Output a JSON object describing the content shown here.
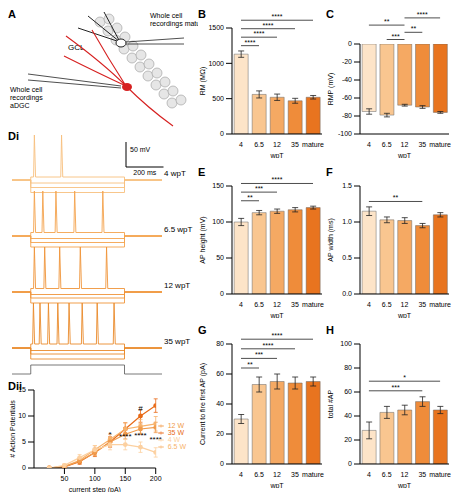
{
  "diagram": {
    "title": "A",
    "layer": "GCL",
    "mature_label": [
      "Whole cell",
      "recordings mature"
    ],
    "adgc_label": [
      "Whole cell",
      "recordings",
      "aDGC"
    ]
  },
  "traces": {
    "title": "Di",
    "scale_bar": {
      "voltage_mV": 50,
      "time_ms": 200,
      "labels": [
        "50 mV",
        "200 ms"
      ]
    },
    "step_ms": [
      100,
      600
    ],
    "sweep_ms": 800,
    "spike_peak_mV": 90,
    "panels": [
      {
        "label": "4 wpT",
        "color": "#f7c07e",
        "sweeps": [
          {
            "deflection_mV": -25,
            "spike_times_ms": []
          },
          {
            "deflection_mV": -15,
            "spike_times_ms": []
          },
          {
            "deflection_mV": -6,
            "spike_times_ms": []
          },
          {
            "deflection_mV": 6,
            "spike_times_ms": [
              15,
              160
            ]
          }
        ]
      },
      {
        "label": "6.5 wpT",
        "color": "#f4a34d",
        "sweeps": [
          {
            "deflection_mV": -22,
            "spike_times_ms": []
          },
          {
            "deflection_mV": -13,
            "spike_times_ms": []
          },
          {
            "deflection_mV": -5,
            "spike_times_ms": []
          },
          {
            "deflection_mV": 7,
            "spike_times_ms": [
              15,
              60,
              130,
              230,
              380
            ]
          }
        ]
      },
      {
        "label": "12 wpT",
        "color": "#ef9439",
        "sweeps": [
          {
            "deflection_mV": -22,
            "spike_times_ms": []
          },
          {
            "deflection_mV": -12,
            "spike_times_ms": []
          },
          {
            "deflection_mV": -5,
            "spike_times_ms": []
          },
          {
            "deflection_mV": 7,
            "spike_times_ms": [
              15,
              70,
              150,
              260,
              400
            ]
          }
        ]
      },
      {
        "label": "35 wpT",
        "color": "#ea8a2a",
        "sweeps": [
          {
            "deflection_mV": -22,
            "spike_times_ms": []
          },
          {
            "deflection_mV": -12,
            "spike_times_ms": []
          },
          {
            "deflection_mV": -5,
            "spike_times_ms": []
          },
          {
            "deflection_mV": 8,
            "spike_times_ms": [
              10,
              45,
              90,
              140,
              200,
              270,
              350,
              440
            ]
          }
        ]
      }
    ]
  },
  "chart_data": [
    {
      "title": "B",
      "type": "bar",
      "categories": [
        "4",
        "6.5",
        "12",
        "35",
        "mature"
      ],
      "values": [
        1130,
        560,
        520,
        470,
        520
      ],
      "errors": [
        45,
        50,
        45,
        35,
        25
      ],
      "colors": [
        "#fde4c8",
        "#f9c690",
        "#f5a963",
        "#ef8c3a",
        "#e8741f"
      ],
      "ylim": [
        0,
        1500
      ],
      "yticks": [
        0,
        500,
        1000,
        1500
      ],
      "y_label": "RM (MΩ)",
      "x_label": "wpT",
      "comparisons": [
        {
          "from": "4",
          "to": "6.5",
          "label": "****"
        },
        {
          "from": "4",
          "to": "12",
          "label": "****"
        },
        {
          "from": "4",
          "to": "35",
          "label": "****"
        },
        {
          "from": "4",
          "to": "mature",
          "label": "****"
        }
      ]
    },
    {
      "title": "C",
      "type": "bar",
      "categories": [
        "4",
        "6.5",
        "12",
        "35",
        "mature"
      ],
      "values": [
        -75,
        -79,
        -68,
        -70,
        -76
      ],
      "errors": [
        3,
        2,
        1,
        1.5,
        1
      ],
      "colors": [
        "#fde4c8",
        "#f9c690",
        "#f5a963",
        "#ef8c3a",
        "#e8741f"
      ],
      "ylim": [
        -100,
        0
      ],
      "yticks": [
        -100,
        -80,
        -60,
        -40,
        -20,
        0
      ],
      "y_label": "RMP (mV)",
      "x_label": "wpT",
      "comparisons": [
        {
          "from": "6.5",
          "to": "12",
          "label": "***"
        },
        {
          "from": "12",
          "to": "35",
          "label": "**"
        },
        {
          "from": "4",
          "to": "12",
          "label": "**"
        },
        {
          "from": "12",
          "to": "mature",
          "label": "****"
        }
      ]
    },
    {
      "title": "E",
      "type": "bar",
      "categories": [
        "4",
        "6.5",
        "12",
        "35",
        "mature"
      ],
      "values": [
        100,
        113,
        115,
        117,
        120
      ],
      "errors": [
        5,
        3,
        3,
        3,
        2
      ],
      "colors": [
        "#fde4c8",
        "#f9c690",
        "#f5a963",
        "#ef8c3a",
        "#e8741f"
      ],
      "ylim": [
        0,
        150
      ],
      "yticks": [
        0,
        50,
        100,
        150
      ],
      "y_label": "AP height (mV)",
      "x_label": "wpT",
      "comparisons": [
        {
          "from": "4",
          "to": "6.5",
          "label": "**"
        },
        {
          "from": "4",
          "to": "12",
          "label": "***"
        },
        {
          "from": "4",
          "to": "mature",
          "label": "****"
        }
      ]
    },
    {
      "title": "F",
      "type": "bar",
      "categories": [
        "4",
        "6.5",
        "12",
        "35",
        "mature"
      ],
      "values": [
        1.15,
        1.03,
        1.02,
        0.95,
        1.1
      ],
      "errors": [
        0.06,
        0.04,
        0.04,
        0.03,
        0.03
      ],
      "colors": [
        "#fde4c8",
        "#f9c690",
        "#f5a963",
        "#ef8c3a",
        "#e8741f"
      ],
      "ylim": [
        0,
        1.5
      ],
      "yticks": [
        {
          "value": 0,
          "label": "0.0"
        },
        0.5,
        {
          "value": 1,
          "label": "1.0"
        },
        1.5
      ],
      "y_label": "AP width (ms)",
      "x_label": "wpT",
      "comparisons": [
        {
          "from": "4",
          "to": "35",
          "label": "**"
        }
      ]
    },
    {
      "title": "G",
      "type": "bar",
      "categories": [
        "4",
        "6.5",
        "12",
        "35",
        "mature"
      ],
      "values": [
        30,
        53,
        55,
        54,
        55
      ],
      "errors": [
        3,
        5,
        5,
        4,
        3
      ],
      "colors": [
        "#fde4c8",
        "#f9c690",
        "#f5a963",
        "#ef8c3a",
        "#e8741f"
      ],
      "ylim": [
        0,
        80
      ],
      "yticks": [
        0,
        20,
        40,
        60,
        80
      ],
      "y_label": "Current to fire first AP (pA)",
      "x_label": "wpT",
      "comparisons": [
        {
          "from": "4",
          "to": "6.5",
          "label": "**"
        },
        {
          "from": "4",
          "to": "12",
          "label": "***"
        },
        {
          "from": "4",
          "to": "35",
          "label": "****"
        },
        {
          "from": "4",
          "to": "mature",
          "label": "****"
        }
      ]
    },
    {
      "title": "H",
      "type": "bar",
      "categories": [
        "4",
        "6.5",
        "12",
        "35",
        "mature"
      ],
      "values": [
        28,
        43,
        45,
        52,
        45
      ],
      "errors": [
        7,
        5,
        4,
        4,
        3
      ],
      "colors": [
        "#fde4c8",
        "#f9c690",
        "#f5a963",
        "#ef8c3a",
        "#e8741f"
      ],
      "ylim": [
        0,
        100
      ],
      "yticks": [
        0,
        20,
        40,
        60,
        80,
        100
      ],
      "y_label": "total #AP",
      "x_label": "wpT",
      "comparisons": [
        {
          "from": "4",
          "to": "35",
          "label": "***"
        },
        {
          "from": "4",
          "to": "mature",
          "label": "*"
        }
      ]
    },
    {
      "title": "Dii",
      "type": "line",
      "x": [
        25,
        50,
        75,
        100,
        125,
        150,
        175,
        200
      ],
      "xlim": [
        0,
        200
      ],
      "xticks": [
        50,
        100,
        150,
        200
      ],
      "ylim": [
        0,
        15
      ],
      "yticks": [
        0,
        5,
        10,
        15
      ],
      "x_label": "current step (pA)",
      "y_label": "# Action Potentials",
      "legend": "right",
      "marker": "circle",
      "series": [
        {
          "name": "35 W",
          "color": "#e86a17",
          "values": [
            0,
            0.2,
            1.2,
            3,
            5,
            7.5,
            10,
            12
          ],
          "errors": [
            0,
            0.2,
            0.5,
            0.8,
            1,
            1.2,
            1.2,
            1.3
          ]
        },
        {
          "name": "6.5 W",
          "color": "#f7b36c",
          "values": [
            0,
            0.3,
            1.5,
            3.5,
            5.5,
            7.5,
            8,
            8.5
          ],
          "errors": [
            0,
            0.2,
            0.5,
            0.8,
            1,
            1.2,
            1.3,
            1.4
          ]
        },
        {
          "name": "12 W",
          "color": "#f09b4c",
          "values": [
            0,
            0.3,
            1.3,
            3,
            5,
            6.5,
            7.5,
            7.8
          ],
          "errors": [
            0,
            0.2,
            0.4,
            0.6,
            0.8,
            0.9,
            1,
            1
          ]
        },
        {
          "name": "4 W",
          "color": "#fcd0a0",
          "values": [
            0,
            0.5,
            2,
            3.5,
            4.5,
            4.5,
            4,
            3
          ],
          "errors": [
            0,
            0.3,
            0.6,
            0.8,
            1,
            1,
            1,
            0.9
          ]
        }
      ],
      "annotations": [
        {
          "x": 125,
          "y": 6.6,
          "label": "*"
        },
        {
          "x": 150,
          "y": 6.2,
          "label": "****"
        },
        {
          "x": 175,
          "y": 6.4,
          "label": "****"
        },
        {
          "x": 200,
          "y": 5.6,
          "label": "****"
        },
        {
          "x": 175,
          "y": 11.6,
          "label": "#"
        }
      ]
    }
  ]
}
